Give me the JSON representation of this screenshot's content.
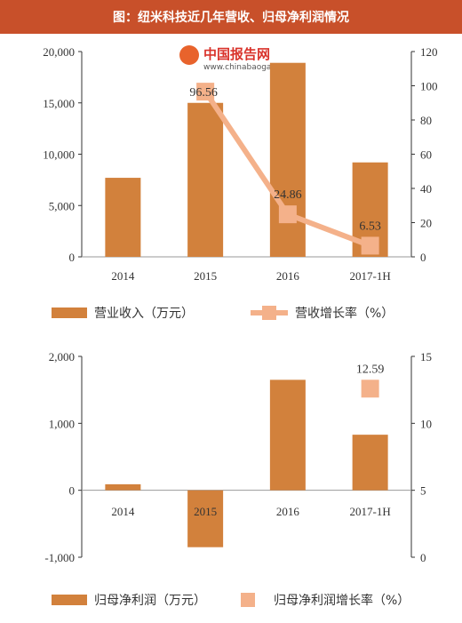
{
  "header": {
    "title": "图：纽米科技近几年营收、归母净利润情况"
  },
  "watermark": {
    "name": "中国报告网",
    "url": "www.chinabaogao.com"
  },
  "colors": {
    "bar": "#d2813c",
    "line": "#f4b18a",
    "header": "#c8502a",
    "axis": "#333333"
  },
  "chart_data": [
    {
      "type": "bar+line",
      "categories": [
        "2014",
        "2015",
        "2016",
        "2017-1H"
      ],
      "left_axis": {
        "range": [
          0,
          20000
        ],
        "ticks": [
          "0",
          "5,000",
          "10,000",
          "15,000",
          "20,000"
        ],
        "tick_values": [
          0,
          5000,
          10000,
          15000,
          20000
        ]
      },
      "right_axis": {
        "range": [
          0,
          120
        ],
        "ticks": [
          "0",
          "20",
          "40",
          "60",
          "80",
          "100",
          "120"
        ],
        "tick_values": [
          0,
          20,
          40,
          60,
          80,
          100,
          120
        ]
      },
      "series": [
        {
          "name": "营业收入（万元）",
          "kind": "bar",
          "axis": "left",
          "values": [
            7700,
            15000,
            18900,
            9200
          ]
        },
        {
          "name": "营收增长率（%）",
          "kind": "line",
          "axis": "right",
          "values": [
            null,
            96.56,
            24.86,
            6.53
          ],
          "labels": [
            "",
            "96.56",
            "24.86",
            "6.53"
          ]
        }
      ]
    },
    {
      "type": "bar+scatter",
      "categories": [
        "2014",
        "2015",
        "2016",
        "2017-1H"
      ],
      "left_axis": {
        "range": [
          -1000,
          2000
        ],
        "ticks": [
          "-1,000",
          "0",
          "1,000",
          "2,000"
        ],
        "tick_values": [
          -1000,
          0,
          1000,
          2000
        ]
      },
      "right_axis": {
        "range": [
          0,
          15
        ],
        "ticks": [
          "0",
          "5",
          "10",
          "15"
        ],
        "tick_values": [
          0,
          5,
          10,
          15
        ]
      },
      "series": [
        {
          "name": "归母净利润（万元）",
          "kind": "bar",
          "axis": "left",
          "values": [
            90,
            -850,
            1650,
            830
          ]
        },
        {
          "name": "归母净利润增长率（%）",
          "kind": "marker",
          "axis": "right",
          "values": [
            null,
            null,
            null,
            12.59
          ],
          "labels": [
            "",
            "",
            "",
            "12.59"
          ]
        }
      ]
    }
  ]
}
